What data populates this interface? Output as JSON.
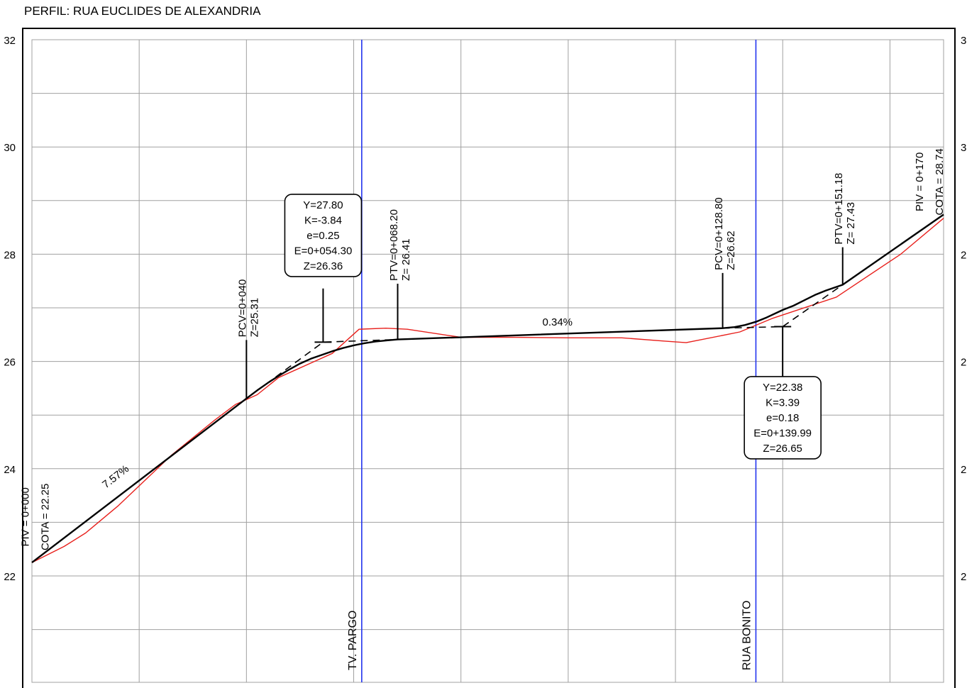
{
  "title": "PERFIL: RUA EUCLIDES DE ALEXANDRIA",
  "colors": {
    "background": "#ffffff",
    "grid": "#a0a0a0",
    "frame": "#000000",
    "terrain": "#e8201c",
    "design": "#000000",
    "streets": "#2233ee"
  },
  "chart_data": {
    "type": "line",
    "title": "PERFIL: RUA EUCLIDES DE ALEXANDRIA",
    "xlabel": "",
    "ylabel": "",
    "xlim": [
      0,
      170
    ],
    "ylim": [
      20.3,
      32
    ],
    "grid": true,
    "x_grid_step": 20,
    "y_grid_step": 1,
    "y_ticks": [
      22,
      24,
      26,
      28,
      30,
      32
    ],
    "y_tick_labels": [
      "22",
      "24",
      "26",
      "28",
      "30",
      "32"
    ],
    "right_tick_labels": [
      "2",
      "2",
      "2",
      "2",
      "3",
      "3"
    ],
    "series": [
      {
        "role": "terrain",
        "color": "#e8201c",
        "x": [
          0,
          3,
          6,
          10,
          16,
          26,
          34,
          38,
          42,
          46,
          56,
          61,
          66,
          70,
          80,
          90,
          100,
          110,
          118,
          122,
          132,
          138,
          150,
          162,
          170
        ],
        "y": [
          22.25,
          22.4,
          22.55,
          22.8,
          23.3,
          24.25,
          24.9,
          25.2,
          25.38,
          25.7,
          26.15,
          26.6,
          26.62,
          26.6,
          26.45,
          26.45,
          26.44,
          26.44,
          26.38,
          26.35,
          26.55,
          26.8,
          27.2,
          28.0,
          28.67
        ]
      },
      {
        "role": "design",
        "color": "#000000",
        "x": [
          0,
          40,
          42,
          44,
          46,
          48,
          50,
          52,
          54.3,
          56,
          58,
          60,
          62,
          64,
          66,
          68.2,
          128.8,
          131,
          133,
          135,
          137,
          139.99,
          142,
          144,
          146,
          148,
          151.18,
          170
        ],
        "y": [
          22.25,
          25.31,
          25.46,
          25.6,
          25.73,
          25.85,
          25.96,
          26.05,
          26.13,
          26.19,
          26.25,
          26.3,
          26.34,
          26.37,
          26.39,
          26.41,
          26.62,
          26.64,
          26.68,
          26.74,
          26.82,
          26.96,
          27.04,
          27.14,
          27.24,
          27.32,
          27.43,
          28.74
        ]
      }
    ],
    "tangents": [
      {
        "x": [
          40,
          54.3,
          68.2
        ],
        "y": [
          25.31,
          26.36,
          26.41
        ]
      },
      {
        "x": [
          128.8,
          139.99,
          151.18
        ],
        "y": [
          26.62,
          26.65,
          27.43
        ]
      }
    ],
    "grade_labels": [
      {
        "text": "7.57%",
        "x": 16,
        "y": 23.8,
        "angle": -38
      },
      {
        "text": "0.34%",
        "x": 98,
        "y": 26.67,
        "angle": 0
      }
    ],
    "street_crossings": [
      {
        "label": "TV. PARGO",
        "x": 61.5
      },
      {
        "label": "RUA BONITO",
        "x": 135
      }
    ],
    "station_labels": [
      {
        "lines": [
          "PCV=0+040",
          "Z=25.31"
        ],
        "x": 40,
        "y": 25.31,
        "top": 26.4,
        "text_x": 40.3
      },
      {
        "lines": [
          "PTV=0+068.20",
          "Z= 26.41"
        ],
        "x": 68.2,
        "y": 26.41,
        "top": 27.45,
        "text_x": 68.5
      },
      {
        "lines": [
          "PCV=0+128.80",
          "Z=26.62"
        ],
        "x": 128.8,
        "y": 26.62,
        "top": 27.65,
        "text_x": 129.1
      },
      {
        "lines": [
          "PTV=0+151.18",
          "Z= 27.43"
        ],
        "x": 151.18,
        "y": 27.43,
        "top": 28.13,
        "text_x": 151.5
      },
      {
        "lines": [
          "PIV = 0+170",
          "COTA = 28.74"
        ],
        "x": 170,
        "y": 28.74,
        "top": null,
        "text_x": 166.4,
        "text_y": 29.35
      },
      {
        "lines": [
          "PIV = 0+000",
          "COTA = 22.25"
        ],
        "x": 0,
        "y": 22.25,
        "top": null,
        "text_x": -0.3,
        "text_y": 23.1
      }
    ],
    "curve_boxes": [
      {
        "lines": [
          "Y=27.80",
          "K=-3.84",
          "e=0.25",
          "E=0+054.30",
          "Z=26.36"
        ],
        "anchor_x": 54.3,
        "anchor_y": 26.36,
        "box_center_x": 54.3,
        "box_center_y": 28.35,
        "leader_end_y": 27.36
      },
      {
        "lines": [
          "Y=22.38",
          "K=3.39",
          "e=0.18",
          "E=0+139.99",
          "Z=26.65"
        ],
        "anchor_x": 139.99,
        "anchor_y": 26.65,
        "box_center_x": 139.99,
        "box_center_y": 24.95,
        "leader_end_y": 25.6
      }
    ]
  }
}
